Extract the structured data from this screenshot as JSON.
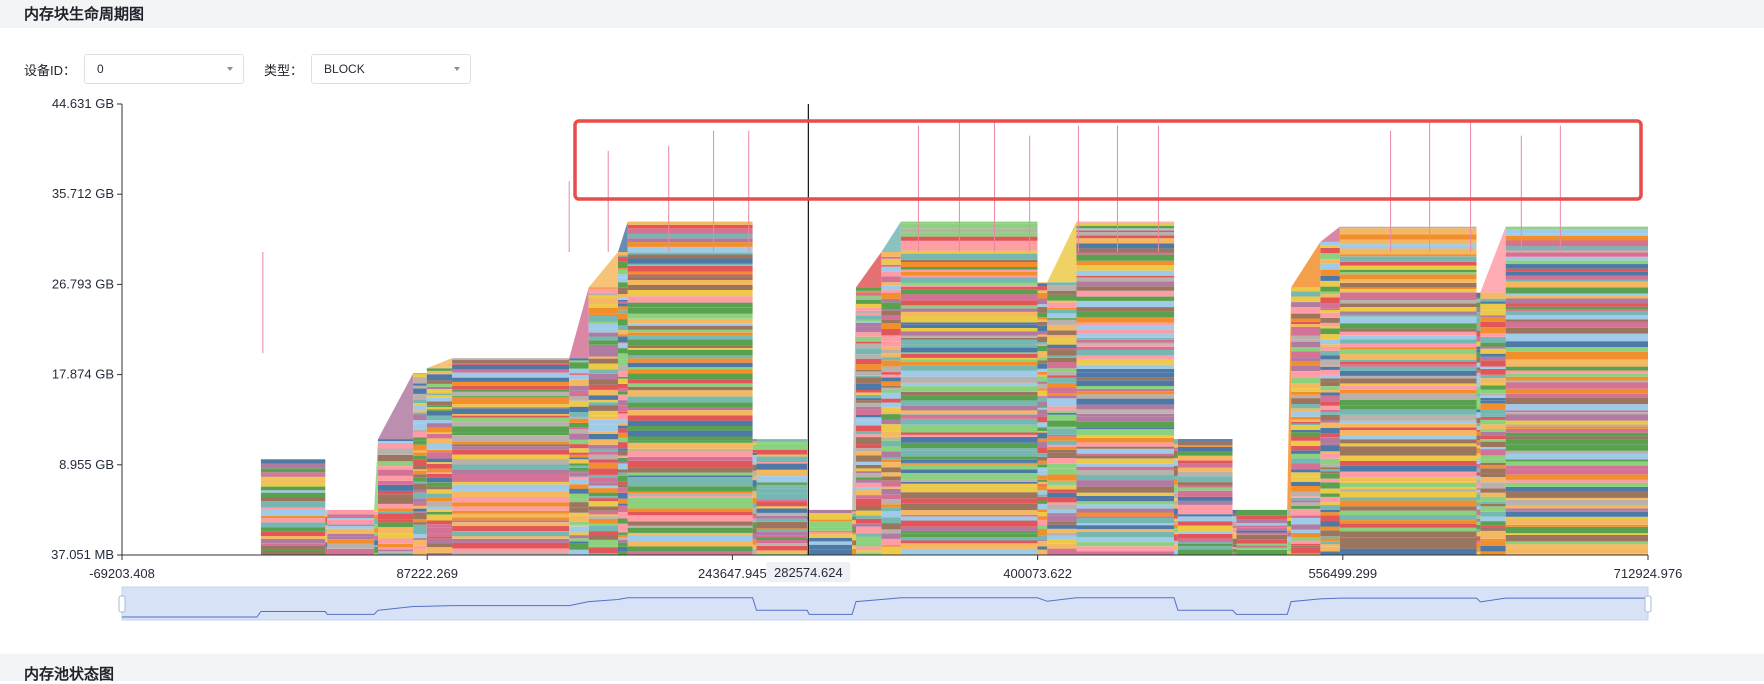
{
  "header": {
    "title": "内存块生命周期图"
  },
  "filters": {
    "device_label": "设备ID：",
    "device_value": "0",
    "type_label": "类型：",
    "type_value": "BLOCK"
  },
  "footer": {
    "title": "内存池状态图"
  },
  "colors": {
    "highlight_box": "#e84c4c",
    "axis": "#333333",
    "zoom_fill": "#d8e2f7",
    "zoom_line": "#5470c6"
  },
  "chart_data": {
    "type": "area",
    "title": "",
    "xlabel": "",
    "ylabel": "",
    "xlim": [
      -69203.408,
      712924.976
    ],
    "ylim_labels": [
      "37.051 MB",
      "8.955 GB",
      "17.874 GB",
      "26.793 GB",
      "35.712 GB",
      "44.631 GB"
    ],
    "x_ticks": [
      {
        "value": -69203.408,
        "label": "-69203.408"
      },
      {
        "value": 87222.269,
        "label": "87222.269"
      },
      {
        "value": 243647.945,
        "label": "243647.945"
      },
      {
        "value": 400073.622,
        "label": "400073.622"
      },
      {
        "value": 556499.299,
        "label": "556499.299"
      },
      {
        "value": 712924.976,
        "label": "712924.976"
      }
    ],
    "crosshair": {
      "x": 282574.624,
      "label": "282574.624"
    },
    "y_ticks": [
      {
        "value": 0.037,
        "label": "37.051 MB"
      },
      {
        "value": 8.955,
        "label": "8.955 GB"
      },
      {
        "value": 17.874,
        "label": "17.874 GB"
      },
      {
        "value": 26.793,
        "label": "26.793 GB"
      },
      {
        "value": 35.712,
        "label": "35.712 GB"
      },
      {
        "value": 44.631,
        "label": "44.631 GB"
      }
    ],
    "total_memory_gb_over_time": [
      {
        "x": -69203.408,
        "y": 0.04
      },
      {
        "x": 0,
        "y": 0.04
      },
      {
        "x": 2000,
        "y": 9.5
      },
      {
        "x": 35000,
        "y": 9.5
      },
      {
        "x": 36000,
        "y": 4.5
      },
      {
        "x": 60000,
        "y": 4.5
      },
      {
        "x": 62000,
        "y": 11.5
      },
      {
        "x": 80000,
        "y": 18
      },
      {
        "x": 87000,
        "y": 18.5
      },
      {
        "x": 100000,
        "y": 19.5
      },
      {
        "x": 160000,
        "y": 19.5
      },
      {
        "x": 170000,
        "y": 26.5
      },
      {
        "x": 185000,
        "y": 30
      },
      {
        "x": 190000,
        "y": 33
      },
      {
        "x": 254000,
        "y": 33
      },
      {
        "x": 256000,
        "y": 11.5
      },
      {
        "x": 282000,
        "y": 11.5
      },
      {
        "x": 283000,
        "y": 4.5
      },
      {
        "x": 305000,
        "y": 4.5
      },
      {
        "x": 307000,
        "y": 26.5
      },
      {
        "x": 320000,
        "y": 30
      },
      {
        "x": 330000,
        "y": 33
      },
      {
        "x": 400000,
        "y": 33
      },
      {
        "x": 405000,
        "y": 27
      },
      {
        "x": 420000,
        "y": 33
      },
      {
        "x": 470000,
        "y": 33
      },
      {
        "x": 472000,
        "y": 11.5
      },
      {
        "x": 500000,
        "y": 11.5
      },
      {
        "x": 502000,
        "y": 4.5
      },
      {
        "x": 528000,
        "y": 4.5
      },
      {
        "x": 530000,
        "y": 26.5
      },
      {
        "x": 545000,
        "y": 31
      },
      {
        "x": 555000,
        "y": 32.5
      },
      {
        "x": 625000,
        "y": 32.5
      },
      {
        "x": 627000,
        "y": 26
      },
      {
        "x": 640000,
        "y": 32.5
      },
      {
        "x": 712924.976,
        "y": 32.5
      }
    ],
    "peak_spikes_gb": [
      {
        "x": 3000,
        "y": 20
      },
      {
        "x": 160000,
        "y": 37
      },
      {
        "x": 180000,
        "y": 40
      },
      {
        "x": 211000,
        "y": 40.5
      },
      {
        "x": 234000,
        "y": 42
      },
      {
        "x": 252000,
        "y": 42
      },
      {
        "x": 339000,
        "y": 42.5
      },
      {
        "x": 360000,
        "y": 43
      },
      {
        "x": 378000,
        "y": 43
      },
      {
        "x": 396000,
        "y": 41.5
      },
      {
        "x": 421000,
        "y": 42.5
      },
      {
        "x": 441000,
        "y": 42.5
      },
      {
        "x": 462000,
        "y": 42.5
      },
      {
        "x": 581000,
        "y": 42
      },
      {
        "x": 601000,
        "y": 43
      },
      {
        "x": 622000,
        "y": 43
      },
      {
        "x": 648000,
        "y": 41.5
      },
      {
        "x": 668000,
        "y": 42.5
      }
    ]
  }
}
